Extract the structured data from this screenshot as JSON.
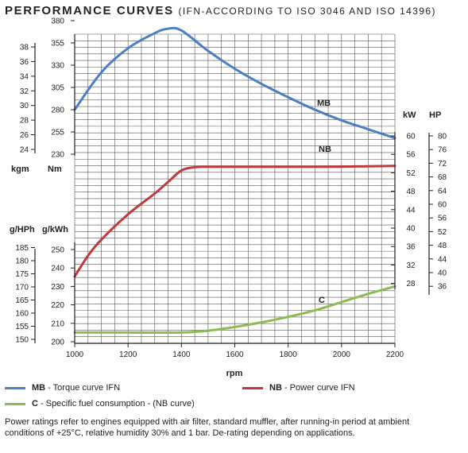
{
  "header": {
    "title": "PERFORMANCE CURVES",
    "subtitle": "(IFN-ACCORDING TO ISO 3046 AND ISO 14396)"
  },
  "colors": {
    "mb": "#4a7fc1",
    "nb": "#c0393b",
    "c": "#8dbb52",
    "grid": "#555555",
    "axis": "#222222"
  },
  "chart_data": {
    "type": "line",
    "x": {
      "label": "rpm",
      "min": 1000,
      "max": 2200,
      "ticks": [
        1000,
        1200,
        1400,
        1600,
        1800,
        2000,
        2200
      ]
    },
    "axes": {
      "torque_kgm": {
        "label": "kgm",
        "ticks": [
          24,
          26,
          28,
          30,
          32,
          34,
          36,
          38
        ]
      },
      "torque_nm": {
        "label": "Nm",
        "ticks": [
          230,
          255,
          280,
          305,
          330,
          355,
          380
        ]
      },
      "power_kw": {
        "label": "kW",
        "ticks": [
          28,
          32,
          36,
          40,
          44,
          48,
          52,
          56,
          60
        ]
      },
      "power_hp": {
        "label": "HP",
        "ticks": [
          36,
          40,
          44,
          48,
          52,
          56,
          60,
          64,
          68,
          72,
          76,
          80
        ]
      },
      "fuel_ghph": {
        "label": "g/HPh",
        "ticks": [
          150,
          155,
          160,
          165,
          170,
          175,
          180,
          185
        ]
      },
      "fuel_gkwh": {
        "label": "g/kWh",
        "ticks": [
          200,
          210,
          220,
          230,
          240,
          250
        ]
      }
    },
    "series": [
      {
        "key": "mb",
        "label": "MB",
        "unit": "Nm",
        "x": [
          1000,
          1100,
          1200,
          1300,
          1350,
          1400,
          1500,
          1600,
          1700,
          1800,
          1900,
          2000,
          2100,
          2200
        ],
        "y": [
          280,
          322,
          349,
          366,
          371,
          369,
          346,
          326,
          309,
          294,
          280,
          268,
          258,
          248
        ]
      },
      {
        "key": "nb",
        "label": "NB",
        "unit": "kW",
        "x": [
          1000,
          1050,
          1100,
          1200,
          1300,
          1350,
          1400,
          1450,
          1500,
          1700,
          1900,
          2100,
          2200
        ],
        "y": [
          29.5,
          34,
          37.5,
          43,
          47.5,
          50,
          52.5,
          53.2,
          53.3,
          53.3,
          53.3,
          53.4,
          53.5
        ]
      },
      {
        "key": "c",
        "label": "C",
        "unit": "g/kWh",
        "x": [
          1000,
          1200,
          1400,
          1500,
          1600,
          1700,
          1800,
          1900,
          2000,
          2100,
          2200
        ],
        "y": [
          205,
          205,
          205,
          206,
          208,
          210.5,
          213.5,
          217,
          221.5,
          226,
          230
        ]
      }
    ]
  },
  "legend": [
    {
      "code": "MB",
      "text": " - Torque curve IFN"
    },
    {
      "code": "NB",
      "text": " - Power curve IFN"
    },
    {
      "code": "C",
      "text": " - Specific fuel consumption - (NB curve)"
    }
  ],
  "footnote": "Power ratings refer to engines equipped with air filter, standard muffler, after running-in period at ambient conditions of +25°C, relative humidity 30% and 1 bar. De-rating depending on applications."
}
